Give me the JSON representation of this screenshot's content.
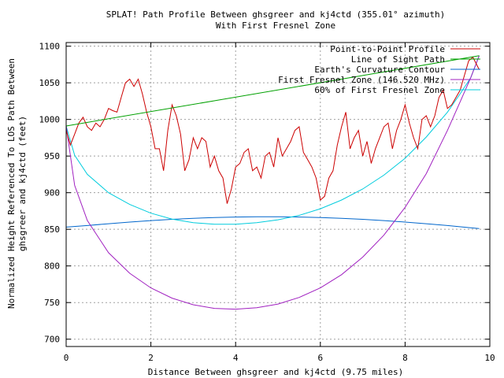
{
  "chart_data": {
    "type": "line",
    "title": "SPLAT! Path Profile Between ghsgreer and kj4ctd (355.01° azimuth)",
    "subtitle": "With First Fresnel Zone",
    "xlabel": "Distance Between ghsgreer and kj4ctd (9.75 miles)",
    "ylabel_line1": "Normalized Height Referenced To LOS Path Between",
    "ylabel_line2": "ghsgreer and kj4ctd (feet)",
    "xlim": [
      0,
      10
    ],
    "ylim": [
      690,
      1105
    ],
    "x_ticks": [
      0,
      2,
      4,
      6,
      8,
      10
    ],
    "x_tick_labels": [
      "0",
      "2",
      "4",
      "6",
      "8",
      "10"
    ],
    "y_ticks": [
      700,
      750,
      800,
      850,
      900,
      950,
      1000,
      1050,
      1100
    ],
    "y_tick_labels": [
      "700",
      "750",
      "800",
      "850",
      "900",
      "950",
      "1000",
      "1050",
      "1100"
    ],
    "grid": true,
    "legend_position": "top-right",
    "series": [
      {
        "name": "Point-to-Point Profile",
        "color": "#cc0000",
        "x": [
          0,
          0.1,
          0.2,
          0.3,
          0.4,
          0.5,
          0.6,
          0.7,
          0.8,
          0.9,
          1.0,
          1.1,
          1.2,
          1.3,
          1.4,
          1.5,
          1.6,
          1.7,
          1.8,
          1.9,
          2.0,
          2.1,
          2.2,
          2.3,
          2.4,
          2.5,
          2.6,
          2.7,
          2.8,
          2.9,
          3.0,
          3.1,
          3.2,
          3.3,
          3.4,
          3.5,
          3.6,
          3.7,
          3.8,
          3.9,
          4.0,
          4.1,
          4.2,
          4.3,
          4.4,
          4.5,
          4.6,
          4.7,
          4.8,
          4.9,
          5.0,
          5.1,
          5.2,
          5.3,
          5.4,
          5.5,
          5.6,
          5.7,
          5.8,
          5.9,
          6.0,
          6.1,
          6.2,
          6.3,
          6.4,
          6.5,
          6.6,
          6.7,
          6.8,
          6.9,
          7.0,
          7.1,
          7.2,
          7.3,
          7.4,
          7.5,
          7.6,
          7.7,
          7.8,
          7.9,
          8.0,
          8.1,
          8.2,
          8.3,
          8.4,
          8.5,
          8.6,
          8.7,
          8.8,
          8.9,
          9.0,
          9.1,
          9.2,
          9.3,
          9.4,
          9.5,
          9.6,
          9.75
        ],
        "y": [
          985,
          965,
          980,
          995,
          1003,
          990,
          985,
          995,
          990,
          1000,
          1015,
          1012,
          1010,
          1030,
          1050,
          1055,
          1045,
          1055,
          1035,
          1010,
          990,
          960,
          960,
          930,
          985,
          1020,
          1005,
          980,
          930,
          945,
          975,
          960,
          975,
          970,
          935,
          950,
          930,
          920,
          885,
          905,
          935,
          940,
          955,
          960,
          930,
          935,
          920,
          950,
          955,
          935,
          975,
          950,
          960,
          970,
          985,
          990,
          955,
          945,
          935,
          920,
          890,
          895,
          920,
          930,
          965,
          990,
          1010,
          960,
          975,
          985,
          950,
          970,
          940,
          960,
          975,
          990,
          995,
          960,
          985,
          1000,
          1020,
          995,
          975,
          960,
          1000,
          1005,
          990,
          1005,
          1030,
          1040,
          1015,
          1020,
          1030,
          1040,
          1060,
          1080,
          1085,
          1068
        ]
      },
      {
        "name": "Line of Sight Path",
        "color": "#00a000",
        "x": [
          0,
          9.75
        ],
        "y": [
          991,
          1087
        ]
      },
      {
        "name": "Earth's Curvature Contour",
        "color": "#0066cc",
        "x": [
          0,
          0.5,
          1,
          1.5,
          2,
          2.5,
          3,
          3.5,
          4,
          4.5,
          5,
          5.5,
          6,
          6.5,
          7,
          7.5,
          8,
          8.5,
          9,
          9.5,
          9.75
        ],
        "y": [
          853,
          855.1,
          857.6,
          859.9,
          861.9,
          863.6,
          865,
          866,
          866.7,
          867.1,
          867.1,
          866.7,
          866,
          865,
          863.6,
          861.9,
          859.9,
          857.6,
          855.1,
          852.3,
          851
        ]
      },
      {
        "name": "First Fresnel Zone (146.520 MHz)",
        "color": "#a020c0",
        "x": [
          0,
          0.2,
          0.5,
          1,
          1.5,
          2,
          2.5,
          3,
          3.5,
          4,
          4.5,
          5,
          5.5,
          6,
          6.5,
          7,
          7.5,
          8,
          8.5,
          9,
          9.3,
          9.55,
          9.75
        ],
        "y": [
          991,
          910,
          862,
          818,
          790,
          770,
          756,
          747,
          742,
          741,
          743,
          748,
          757,
          770,
          788,
          812,
          842,
          880,
          926,
          985,
          1024,
          1057,
          1087
        ]
      },
      {
        "name": "60% of First Fresnel Zone",
        "color": "#00ccdd",
        "x": [
          0,
          0.2,
          0.5,
          1,
          1.5,
          2,
          2.5,
          3,
          3.5,
          4,
          4.5,
          5,
          5.5,
          6,
          6.5,
          7,
          7.5,
          8,
          8.5,
          9,
          9.3,
          9.55,
          9.75
        ],
        "y": [
          991,
          951,
          925,
          900,
          884,
          872,
          864,
          859,
          857,
          857,
          859,
          863,
          869,
          878,
          890,
          905,
          924,
          947,
          976,
          1010,
          1035,
          1057,
          1087
        ]
      }
    ]
  }
}
